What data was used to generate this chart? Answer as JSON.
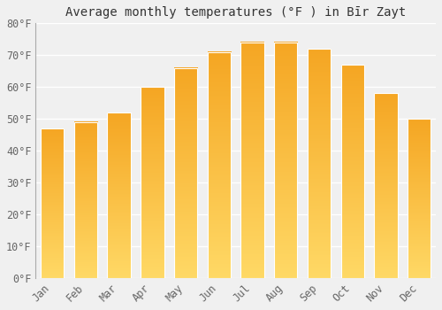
{
  "title": "Average monthly temperatures (°F ) in Bīr Zayt",
  "months": [
    "Jan",
    "Feb",
    "Mar",
    "Apr",
    "May",
    "Jun",
    "Jul",
    "Aug",
    "Sep",
    "Oct",
    "Nov",
    "Dec"
  ],
  "values": [
    47,
    49,
    52,
    60,
    66,
    71,
    74,
    74,
    72,
    67,
    58,
    50
  ],
  "bar_color_top": "#F5A623",
  "bar_color_bottom": "#FFD966",
  "ylim": [
    0,
    80
  ],
  "yticks": [
    0,
    10,
    20,
    30,
    40,
    50,
    60,
    70,
    80
  ],
  "ytick_labels": [
    "0°F",
    "10°F",
    "20°F",
    "30°F",
    "40°F",
    "50°F",
    "60°F",
    "70°F",
    "80°F"
  ],
  "bg_color": "#f0f0f0",
  "plot_bg_color": "#f0f0f0",
  "grid_color": "#ffffff",
  "title_fontsize": 10,
  "tick_fontsize": 8.5
}
